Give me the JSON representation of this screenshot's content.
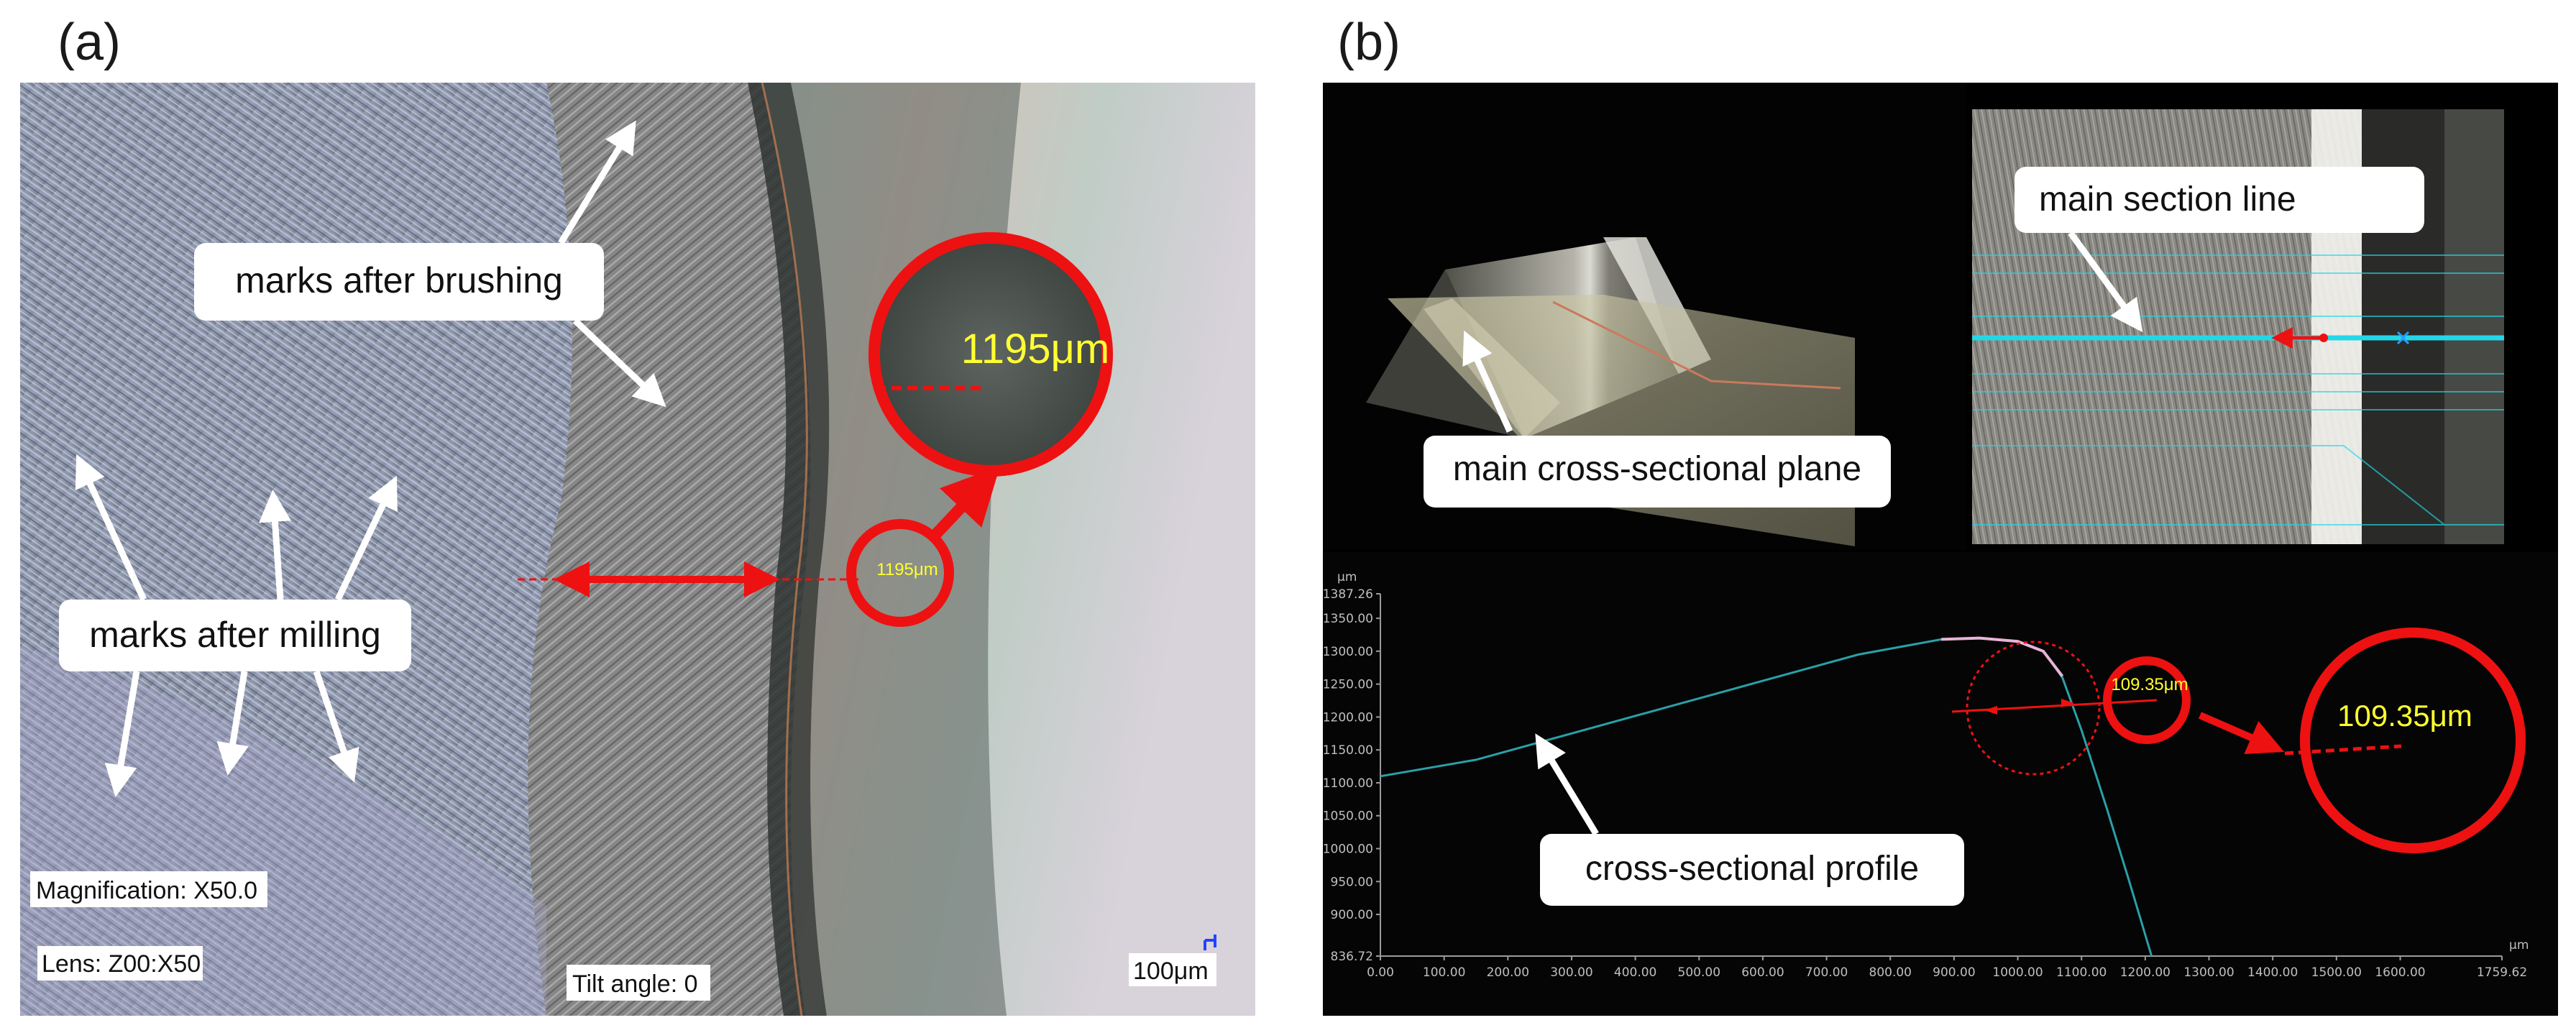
{
  "figure": {
    "panel_a_label": "(a)",
    "panel_b_label": "(b)"
  },
  "panel_a": {
    "label_brushing": "marks after brushing",
    "label_milling": "marks after milling",
    "measure_small": "1195μm",
    "measure_zoom": "1195μm",
    "magnification": "Magnification: X50.0",
    "lens": "Lens: Z00:X50",
    "tilt": "Tilt angle: 0",
    "scale_bar": "100μm"
  },
  "panel_b": {
    "label_plane": "main cross-sectional plane",
    "label_section_line": "main section line",
    "label_profile": "cross-sectional profile",
    "measure_small": "109.35μm",
    "measure_zoom": "109.35μm",
    "profile_chart": {
      "x_unit": "μm",
      "y_unit": "μm",
      "y_ticks": [
        "1387.26",
        "1350.00",
        "1300.00",
        "1250.00",
        "1200.00",
        "1150.00",
        "1100.00",
        "1050.00",
        "1000.00",
        "950.00",
        "900.00",
        "836.72"
      ],
      "x_ticks": [
        "0.00",
        "100.00",
        "200.00",
        "300.00",
        "400.00",
        "500.00",
        "600.00",
        "700.00",
        "800.00",
        "900.00",
        "1000.00",
        "1100.00",
        "1200.00",
        "1300.00",
        "1400.00",
        "1500.00",
        "1600.00",
        "1759.62"
      ]
    }
  },
  "colors": {
    "annotation_red": "#ee1111",
    "measure_yellow": "#ffff33",
    "section_cyan": "#22d8e8",
    "profile_teal": "#2aa0a8"
  }
}
